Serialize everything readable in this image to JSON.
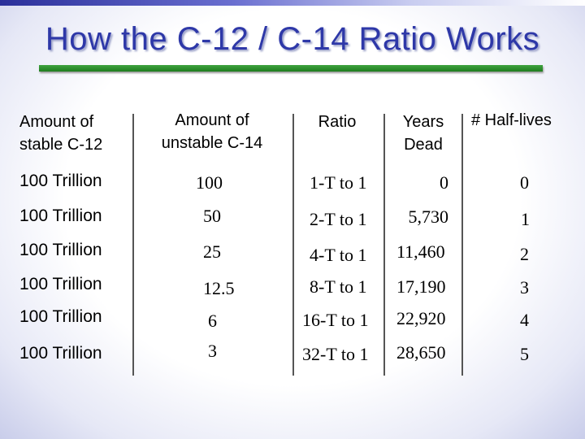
{
  "title": "How the C-12 / C-14 Ratio Works",
  "headers": {
    "c12_line1": "Amount of",
    "c12_line2": "stable C-12",
    "c14_line1": "Amount of",
    "c14_line2": "unstable C-14",
    "ratio": "Ratio",
    "years_line1": "Years",
    "years_line2": "Dead",
    "halflives": "# Half-lives"
  },
  "rows": [
    {
      "c12": "100 Trillion",
      "c14": "100",
      "ratio": "1-T to 1",
      "years": "0",
      "halflives": "0"
    },
    {
      "c12": "100 Trillion",
      "c14": "50",
      "ratio": "2-T to 1",
      "years": "5,730",
      "halflives": "1"
    },
    {
      "c12": "100 Trillion",
      "c14": "25",
      "ratio": "4-T to 1",
      "years": "11,460",
      "halflives": "2"
    },
    {
      "c12": "100 Trillion",
      "c14": "12.5",
      "ratio": "8-T to 1",
      "years": "17,190",
      "halflives": "3"
    },
    {
      "c12": "100 Trillion",
      "c14": "6",
      "ratio": "16-T to 1",
      "years": "22,920",
      "halflives": "4"
    },
    {
      "c12": "100 Trillion",
      "c14": "3",
      "ratio": "32-T to 1",
      "years": "28,650",
      "halflives": "5"
    }
  ]
}
